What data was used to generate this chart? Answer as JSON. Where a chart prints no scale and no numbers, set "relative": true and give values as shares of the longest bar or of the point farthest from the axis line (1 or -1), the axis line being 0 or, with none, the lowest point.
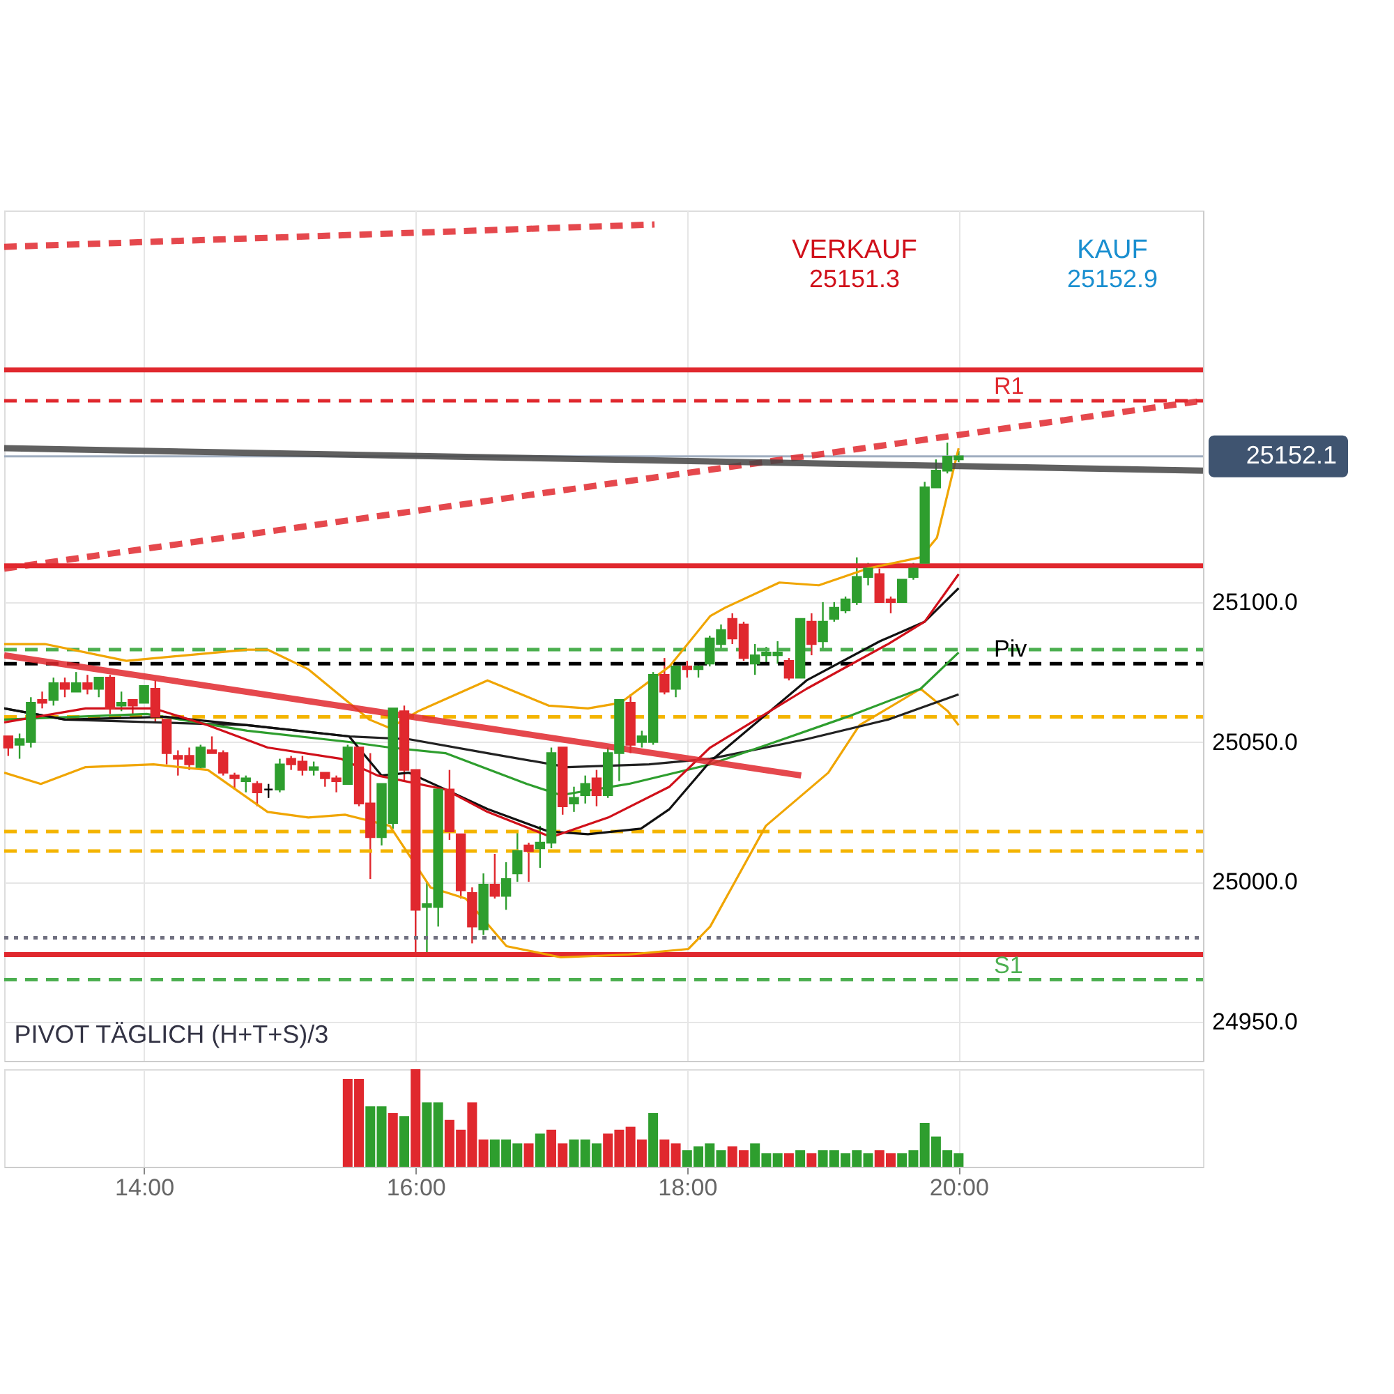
{
  "chart_data": [
    {
      "type": "candlestick",
      "xlim": [
        12.97,
        21.8
      ],
      "ylim": [
        24936,
        25240
      ],
      "xticks": [
        {
          "value": 14,
          "label": null
        },
        {
          "value": 16,
          "label": null
        },
        {
          "value": 18,
          "label": null
        },
        {
          "value": 20,
          "label": null
        }
      ],
      "yticks": [
        {
          "value": 24950,
          "label": "24950.0"
        },
        {
          "value": 25000,
          "label": "25000.0"
        },
        {
          "value": 25050,
          "label": "25050.0"
        },
        {
          "value": 25100,
          "label": "25100.0"
        }
      ],
      "tick_labels": "y",
      "grid": true,
      "x": [
        13,
        13.0833,
        13.1667,
        13.25,
        13.3333,
        13.4167,
        13.5,
        13.5833,
        13.6667,
        13.75,
        13.8333,
        13.9167,
        14,
        14.0833,
        14.1667,
        14.25,
        14.3333,
        14.4167,
        14.5,
        14.5833,
        14.6667,
        14.75,
        14.8333,
        14.9167,
        15,
        15.0833,
        15.1667,
        15.25,
        15.3333,
        15.4167,
        15.5,
        15.5833,
        15.6667,
        15.75,
        15.8333,
        15.9167,
        16,
        16.0833,
        16.1667,
        16.25,
        16.3333,
        16.4167,
        16.5,
        16.5833,
        16.6667,
        16.75,
        16.8333,
        16.9167,
        17,
        17.0833,
        17.1667,
        17.25,
        17.3333,
        17.4167,
        17.5,
        17.5833,
        17.6667,
        17.75,
        17.8333,
        17.9167,
        18,
        18.0833,
        18.1667,
        18.25,
        18.3333,
        18.4167,
        18.5,
        18.5833,
        18.6667,
        18.75,
        18.8333,
        18.9167,
        19,
        19.0833,
        19.1667,
        19.25,
        19.3333,
        19.4167,
        19.5,
        19.5833,
        19.6667,
        19.75,
        19.8333,
        19.9167,
        20
      ],
      "ohlc": [
        [
          25052,
          25052,
          25045,
          25048
        ],
        [
          25049,
          25053,
          25044,
          25051
        ],
        [
          25050,
          25066,
          25048,
          25064
        ],
        [
          25065,
          25068,
          25062,
          25064
        ],
        [
          25065,
          25073,
          25063,
          25071
        ],
        [
          25071,
          25073,
          25066,
          25069
        ],
        [
          25068,
          25075,
          25068,
          25071
        ],
        [
          25071,
          25074,
          25067,
          25069
        ],
        [
          25069,
          25073,
          25066,
          25073
        ],
        [
          25073,
          25074,
          25060,
          25062
        ],
        [
          25063,
          25068,
          25061,
          25064
        ],
        [
          25065,
          25065,
          25060,
          25063
        ],
        [
          25064,
          25070,
          25064,
          25070
        ],
        [
          25069,
          25072,
          25057,
          25059
        ],
        [
          25058,
          25058,
          25042,
          25046
        ],
        [
          25045,
          25047,
          25038,
          25044
        ],
        [
          25045,
          25048,
          25040,
          25042
        ],
        [
          25041,
          25049,
          25040,
          25048
        ],
        [
          25047,
          25052,
          25046,
          25046
        ],
        [
          25046,
          25047,
          25038,
          25039
        ],
        [
          25038,
          25039,
          25033,
          25037
        ],
        [
          25036,
          25038,
          25032,
          25037
        ],
        [
          25035,
          25036,
          25027,
          25032
        ],
        [
          25033,
          25035,
          25030,
          25033
        ],
        [
          25033,
          25044,
          25032,
          25042
        ],
        [
          25044,
          25045,
          25040,
          25042
        ],
        [
          25043,
          25045,
          25038,
          25040
        ],
        [
          25040,
          25043,
          25038,
          25041
        ],
        [
          25039,
          25039,
          25034,
          25037
        ],
        [
          25037,
          25038,
          25032,
          25036
        ],
        [
          25035,
          25049,
          25035,
          25048
        ],
        [
          25048,
          25048,
          25027,
          25028
        ],
        [
          25028,
          25046,
          25001,
          25016
        ],
        [
          25016,
          25035,
          25013,
          25035
        ],
        [
          25021,
          25062,
          25019,
          25062
        ],
        [
          25061,
          25063,
          25036,
          25040
        ],
        [
          25040,
          25040,
          24974,
          24990
        ],
        [
          24991,
          25000,
          24974,
          24992
        ],
        [
          24991,
          25034,
          24984,
          25033
        ],
        [
          25033,
          25040,
          25015,
          25018
        ],
        [
          25017,
          25017,
          24994,
          24997
        ],
        [
          24996,
          24998,
          24978,
          24984
        ],
        [
          24983,
          25003,
          24981,
          24999
        ],
        [
          24999,
          25010,
          24994,
          24995
        ],
        [
          24995,
          25007,
          24990,
          25001
        ],
        [
          25003,
          25018,
          25000,
          25011
        ],
        [
          25013,
          25014,
          25000,
          25011
        ],
        [
          25012,
          25020,
          25005,
          25014
        ],
        [
          25014,
          25048,
          25012,
          25046
        ],
        [
          25048,
          25048,
          25024,
          25027
        ],
        [
          25028,
          25034,
          25025,
          25030
        ],
        [
          25031,
          25038,
          25028,
          25035
        ],
        [
          25037,
          25040,
          25027,
          25031
        ],
        [
          25031,
          25048,
          25030,
          25046
        ],
        [
          25046,
          25065,
          25036,
          25065
        ],
        [
          25064,
          25067,
          25046,
          25049
        ],
        [
          25050,
          25054,
          25048,
          25052
        ],
        [
          25050,
          25075,
          25049,
          25074
        ],
        [
          25074,
          25080,
          25067,
          25068
        ],
        [
          25069,
          25077,
          25066,
          25077
        ],
        [
          25077,
          25079,
          25073,
          25076
        ],
        [
          25076,
          25078,
          25073,
          25077
        ],
        [
          25078,
          25088,
          25077,
          25087
        ],
        [
          25085,
          25092,
          25083,
          25090
        ],
        [
          25094,
          25096,
          25085,
          25087
        ],
        [
          25092,
          25093,
          25079,
          25080
        ],
        [
          25078,
          25085,
          25074,
          25081
        ],
        [
          25081,
          25084,
          25078,
          25082
        ],
        [
          25081,
          25086,
          25078,
          25082
        ],
        [
          25079,
          25080,
          25072,
          25073
        ],
        [
          25073,
          25094,
          25073,
          25094
        ],
        [
          25093,
          25096,
          25081,
          25085
        ],
        [
          25086,
          25100,
          25083,
          25093
        ],
        [
          25094,
          25100,
          25093,
          25098
        ],
        [
          25097,
          25102,
          25096,
          25101
        ],
        [
          25100,
          25116,
          25099,
          25109
        ],
        [
          25109,
          25114,
          25106,
          25112
        ],
        [
          25110,
          25112,
          25100,
          25100
        ],
        [
          25101,
          25102,
          25096,
          25100
        ],
        [
          25100,
          25108,
          25100,
          25108
        ],
        [
          25109,
          25114,
          25108,
          25112
        ],
        [
          25114,
          25143,
          25114,
          25141
        ],
        [
          25141,
          25151,
          25141,
          25147
        ],
        [
          25147,
          25157,
          25146,
          25152
        ],
        [
          25151,
          25154,
          25150,
          25152.1
        ]
      ],
      "colors": [
        "#e0282e",
        "#2e9e2e",
        "#2e9e2e",
        "#e0282e",
        "#2e9e2e",
        "#e0282e",
        "#2e9e2e",
        "#e0282e",
        "#2e9e2e",
        "#e0282e",
        "#2e9e2e",
        "#e0282e",
        "#2e9e2e",
        "#e0282e",
        "#e0282e",
        "#e0282e",
        "#e0282e",
        "#2e9e2e",
        "#e0282e",
        "#e0282e",
        "#e0282e",
        "#2e9e2e",
        "#e0282e",
        "#000000",
        "#2e9e2e",
        "#e0282e",
        "#e0282e",
        "#2e9e2e",
        "#e0282e",
        "#e0282e",
        "#2e9e2e",
        "#e0282e",
        "#e0282e",
        "#2e9e2e",
        "#2e9e2e",
        "#e0282e",
        "#e0282e",
        "#2e9e2e",
        "#2e9e2e",
        "#e0282e",
        "#e0282e",
        "#e0282e",
        "#2e9e2e",
        "#e0282e",
        "#2e9e2e",
        "#2e9e2e",
        "#e0282e",
        "#2e9e2e",
        "#2e9e2e",
        "#e0282e",
        "#2e9e2e",
        "#2e9e2e",
        "#e0282e",
        "#2e9e2e",
        "#2e9e2e",
        "#e0282e",
        "#2e9e2e",
        "#2e9e2e",
        "#e0282e",
        "#2e9e2e",
        "#e0282e",
        "#2e9e2e",
        "#2e9e2e",
        "#2e9e2e",
        "#e0282e",
        "#e0282e",
        "#2e9e2e",
        "#2e9e2e",
        "#2e9e2e",
        "#e0282e",
        "#2e9e2e",
        "#e0282e",
        "#2e9e2e",
        "#2e9e2e",
        "#2e9e2e",
        "#2e9e2e",
        "#2e9e2e",
        "#e0282e",
        "#e0282e",
        "#2e9e2e",
        "#2e9e2e",
        "#2e9e2e",
        "#2e9e2e",
        "#2e9e2e",
        "#2e9e2e"
      ],
      "series": [
        {
          "type": "line",
          "color": "#f0a500",
          "x": [
            12.97,
            13.27,
            13.87,
            14.76,
            14.91,
            15.21,
            15.66,
            15.81,
            16.02,
            16.53,
            16.98,
            17.27,
            17.51,
            17.87,
            18.17,
            18.28,
            18.68,
            18.97,
            19.33,
            19.72,
            19.84,
            20.0
          ],
          "values": [
            25085,
            25085,
            25079,
            25083,
            25083,
            25076,
            25058,
            25055,
            25061,
            25072,
            25063,
            25062,
            25064,
            25077,
            25095,
            25098,
            25107,
            25106,
            25112,
            25116,
            25123,
            25155
          ]
        },
        {
          "type": "line",
          "color": "#f0a500",
          "x": [
            12.97,
            13.24,
            13.57,
            14.07,
            14.47,
            14.91,
            15.21,
            15.48,
            15.81,
            16.11,
            16.37,
            16.67,
            17.07,
            17.57,
            18.01,
            18.17,
            18.58,
            19.04,
            19.27,
            19.72,
            19.92,
            20.0
          ],
          "values": [
            25039,
            25035,
            25041,
            25042,
            25040,
            25025,
            25023,
            25024,
            25020,
            24998,
            24994,
            24977,
            24973,
            24974,
            24976,
            24984,
            25020,
            25039,
            25056,
            25069,
            25061,
            25056
          ]
        },
        {
          "type": "line",
          "color": "#222222",
          "x": [
            12.97,
            13.42,
            14.76,
            15.51,
            15.95,
            16.53,
            17.12,
            17.72,
            18.17,
            18.88,
            19.48,
            20.0
          ],
          "values": [
            25062,
            25058,
            25056,
            25052,
            25051,
            25046,
            25041,
            25042,
            25044,
            25051,
            25058,
            25067
          ]
        },
        {
          "type": "line",
          "color": "#2e9e2e",
          "x": [
            12.97,
            14.02,
            14.76,
            15.51,
            15.81,
            16.22,
            16.82,
            17.07,
            17.57,
            18.17,
            18.59,
            19.18,
            19.72,
            20.0
          ],
          "values": [
            25058,
            25060,
            25054,
            25050,
            25048,
            25046,
            25035,
            25031,
            25035,
            25042,
            25049,
            25059,
            25069,
            25082
          ]
        },
        {
          "type": "line",
          "color": "#111111",
          "x": [
            12.97,
            13.42,
            14.16,
            14.76,
            15.51,
            15.75,
            15.95,
            16.22,
            16.53,
            16.98,
            17.27,
            17.66,
            17.87,
            18.17,
            18.88,
            19.42,
            19.75,
            20.0
          ],
          "values": [
            25062,
            25058,
            25059,
            25056,
            25052,
            25038,
            25039,
            25033,
            25026,
            25018,
            25017,
            25019,
            25026,
            25043,
            25072,
            25086,
            25093,
            25105
          ]
        },
        {
          "type": "line",
          "color": "#d0101a",
          "x": [
            12.97,
            13.57,
            14.07,
            14.47,
            14.91,
            15.45,
            15.72,
            16.22,
            16.53,
            17.0,
            17.42,
            17.87,
            18.17,
            18.88,
            19.48,
            19.75,
            20.0
          ],
          "values": [
            25057,
            25062,
            25062,
            25056,
            25048,
            25044,
            25038,
            25033,
            25025,
            25016,
            25023,
            25034,
            25048,
            25069,
            25085,
            25093,
            25110
          ]
        },
        {
          "type": "line",
          "color": "#e0282e",
          "line_style": "dashed",
          "x": [
            12.97,
            17.76
          ],
          "values": [
            25227,
            25235
          ]
        },
        {
          "type": "line",
          "color": "#e0282e",
          "line_style": "dashed",
          "x": [
            12.97,
            21.8
          ],
          "values": [
            25112,
            25172
          ]
        },
        {
          "type": "line",
          "color": "#444444",
          "x": [
            12.97,
            21.8
          ],
          "values": [
            25155,
            25147
          ]
        },
        {
          "type": "line",
          "color": "#e0282e",
          "x": [
            12.97,
            18.84
          ],
          "values": [
            25081,
            25038
          ]
        }
      ],
      "ref_lines": [
        {
          "axis": "y",
          "value": 25183,
          "color": "#e0282e"
        },
        {
          "axis": "y",
          "value": 25172,
          "label": "R1",
          "color": "#e0282e",
          "line_style": "dashed"
        },
        {
          "axis": "y",
          "value": 25152.1,
          "label": "25152.1",
          "color": "#a0aec0"
        },
        {
          "axis": "y",
          "value": 25113,
          "color": "#e0282e"
        },
        {
          "axis": "y",
          "value": 25083,
          "color": "#4caf50",
          "line_style": "dashed"
        },
        {
          "axis": "y",
          "value": 25078,
          "label": "Piv",
          "color": "#000000",
          "line_style": "dashed"
        },
        {
          "axis": "y",
          "value": 25059,
          "color": "#f4b400",
          "line_style": "dashed"
        },
        {
          "axis": "y",
          "value": 25018,
          "color": "#f4b400",
          "line_style": "dashed"
        },
        {
          "axis": "y",
          "value": 25011,
          "color": "#f4b400",
          "line_style": "dashed"
        },
        {
          "axis": "y",
          "value": 24980,
          "color": "#707080",
          "line_style": "dotted"
        },
        {
          "axis": "y",
          "value": 24974,
          "color": "#e0282e"
        },
        {
          "axis": "y",
          "value": 24965,
          "label": "S1",
          "color": "#4caf50",
          "line_style": "dashed"
        }
      ],
      "annotations": [
        "VERKAUF",
        "25151.3",
        "KAUF",
        "25152.9",
        "PIVOT  TÄGLICH  (H+T+S)/3"
      ]
    },
    {
      "type": "bar",
      "relative": true,
      "xlim": [
        12.97,
        21.8
      ],
      "grid": "x",
      "xticks": [
        {
          "value": 14,
          "label": "14:00"
        },
        {
          "value": 16,
          "label": "16:00"
        },
        {
          "value": 18,
          "label": "18:00"
        },
        {
          "value": 20,
          "label": "20:00"
        }
      ],
      "tick_labels": "x",
      "x": [
        15.5,
        15.5833,
        15.6667,
        15.75,
        15.8333,
        15.9167,
        16,
        16.0833,
        16.1667,
        16.25,
        16.3333,
        16.4167,
        16.5,
        16.5833,
        16.6667,
        16.75,
        16.8333,
        16.9167,
        17,
        17.0833,
        17.1667,
        17.25,
        17.3333,
        17.4167,
        17.5,
        17.5833,
        17.6667,
        17.75,
        17.8333,
        17.9167,
        18,
        18.0833,
        18.1667,
        18.25,
        18.3333,
        18.4167,
        18.5,
        18.5833,
        18.6667,
        18.75,
        18.8333,
        18.9167,
        19,
        19.0833,
        19.1667,
        19.25,
        19.3333,
        19.4167,
        19.5,
        19.5833,
        19.6667,
        19.75,
        19.8333,
        19.9167,
        20
      ],
      "values": [
        0.9,
        0.9,
        0.62,
        0.62,
        0.55,
        0.52,
        1,
        0.66,
        0.66,
        0.48,
        0.38,
        0.66,
        0.28,
        0.28,
        0.28,
        0.24,
        0.24,
        0.34,
        0.38,
        0.24,
        0.28,
        0.28,
        0.24,
        0.34,
        0.38,
        0.41,
        0.28,
        0.55,
        0.28,
        0.24,
        0.17,
        0.21,
        0.24,
        0.17,
        0.21,
        0.17,
        0.24,
        0.14,
        0.14,
        0.14,
        0.17,
        0.14,
        0.17,
        0.17,
        0.14,
        0.17,
        0.14,
        0.17,
        0.14,
        0.14,
        0.17,
        0.45,
        0.31,
        0.17,
        0.14
      ],
      "colors": [
        "#e0282e",
        "#e0282e",
        "#2e9e2e",
        "#2e9e2e",
        "#e0282e",
        "#2e9e2e",
        "#e0282e",
        "#2e9e2e",
        "#2e9e2e",
        "#e0282e",
        "#e0282e",
        "#e0282e",
        "#e0282e",
        "#2e9e2e",
        "#2e9e2e",
        "#2e9e2e",
        "#e0282e",
        "#2e9e2e",
        "#e0282e",
        "#e0282e",
        "#2e9e2e",
        "#2e9e2e",
        "#2e9e2e",
        "#e0282e",
        "#e0282e",
        "#e0282e",
        "#e0282e",
        "#2e9e2e",
        "#e0282e",
        "#e0282e",
        "#2e9e2e",
        "#2e9e2e",
        "#2e9e2e",
        "#2e9e2e",
        "#e0282e",
        "#e0282e",
        "#2e9e2e",
        "#2e9e2e",
        "#2e9e2e",
        "#e0282e",
        "#2e9e2e",
        "#e0282e",
        "#2e9e2e",
        "#2e9e2e",
        "#2e9e2e",
        "#2e9e2e",
        "#2e9e2e",
        "#e0282e",
        "#e0282e",
        "#2e9e2e",
        "#2e9e2e",
        "#2e9e2e",
        "#2e9e2e",
        "#2e9e2e",
        "#2e9e2e"
      ]
    }
  ]
}
